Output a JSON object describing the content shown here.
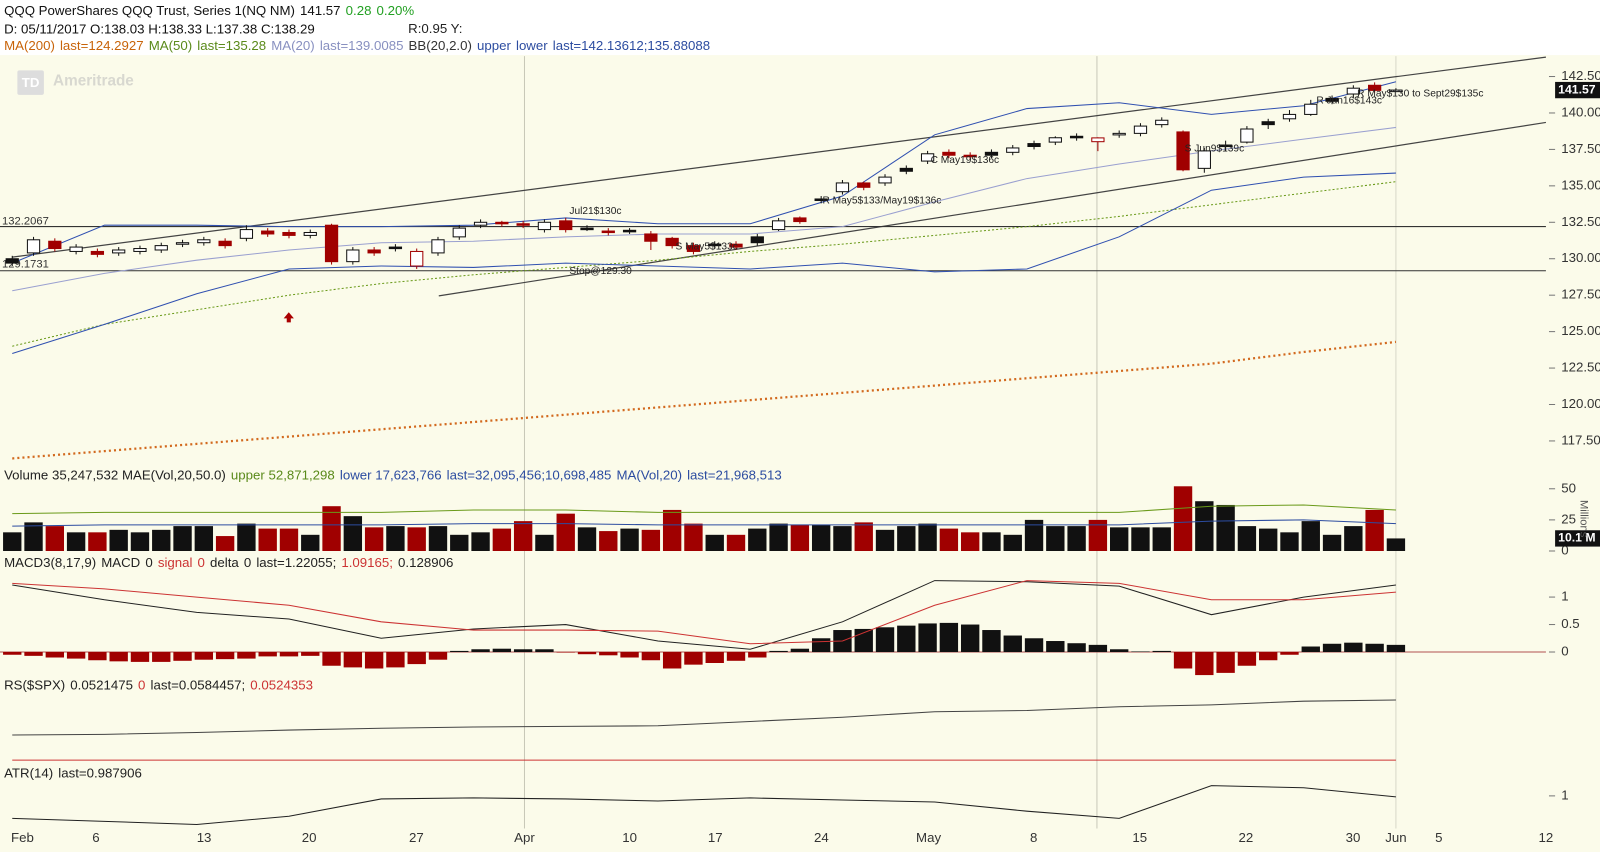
{
  "header": {
    "line1": [
      {
        "text": "QQQ PowerShares QQQ Trust, Series 1(NQ NM)",
        "color": "#111"
      },
      {
        "text": "141.57",
        "color": "#111"
      },
      {
        "text": "0.28",
        "color": "#22a022"
      },
      {
        "text": "0.20%",
        "color": "#22a022"
      }
    ],
    "line2": [
      {
        "text": "D: 05/11/2017 O:138.03 H:138.33 L:137.38 C:138.29",
        "color": "#111"
      },
      {
        "text": "R:0.95 Y:",
        "color": "#111"
      }
    ],
    "line3": [
      {
        "text": "MA(200)",
        "color": "#c8640a"
      },
      {
        "text": "last=124.2927",
        "color": "#c8640a"
      },
      {
        "text": "MA(50)",
        "color": "#5a8a1a"
      },
      {
        "text": "last=135.28",
        "color": "#5a8a1a"
      },
      {
        "text": "MA(20)",
        "color": "#8890c0"
      },
      {
        "text": "last=139.0085",
        "color": "#8890c0"
      },
      {
        "text": "BB(20,2.0)",
        "color": "#333"
      },
      {
        "text": "upper",
        "color": "#2c4ca0"
      },
      {
        "text": "lower",
        "color": "#2c4ca0"
      },
      {
        "text": "last=142.13612;135.88088",
        "color": "#2c4ca0"
      }
    ],
    "watermark_logo": "TD",
    "watermark": "Ameritrade"
  },
  "x_labels": [
    "Feb",
    "6",
    "13",
    "20",
    "27",
    "Apr",
    "10",
    "17",
    "24",
    "May",
    "8",
    "15",
    "22",
    "30",
    "Jun",
    "5",
    "12"
  ],
  "chart_data": [
    {
      "type": "candlestick",
      "up_color": "#111111",
      "down_color": "#a00000",
      "open": [
        130.0,
        130.4,
        131.2,
        130.5,
        130.5,
        130.4,
        130.5,
        130.6,
        131.0,
        131.1,
        131.2,
        131.4,
        131.9,
        131.8,
        131.6,
        132.3,
        129.8,
        130.6,
        130.8,
        129.5,
        130.4,
        131.5,
        132.3,
        132.5,
        132.4,
        132.0,
        132.6,
        132.1,
        131.9,
        131.95,
        131.7,
        131.4,
        130.9,
        131.0,
        131.0,
        131.5,
        132.0,
        132.8,
        134.1,
        134.6,
        135.2,
        135.2,
        136.2,
        136.7,
        137.3,
        137.1,
        137.3,
        137.3,
        137.9,
        138.0,
        138.4,
        138.03,
        138.5,
        138.6,
        139.2,
        138.7,
        136.2,
        137.8,
        138.0,
        139.4,
        139.6,
        139.9,
        141.0,
        141.3,
        141.9,
        141.5
      ],
      "high": [
        130.2,
        131.5,
        131.4,
        131.0,
        130.7,
        130.8,
        130.9,
        131.1,
        131.3,
        131.5,
        131.4,
        132.3,
        132.1,
        132.0,
        132.0,
        132.4,
        130.8,
        130.8,
        131.0,
        130.7,
        131.5,
        132.3,
        132.7,
        132.6,
        132.6,
        132.7,
        132.8,
        132.3,
        132.1,
        132.1,
        131.9,
        131.5,
        131.1,
        131.2,
        131.2,
        131.7,
        132.8,
        132.9,
        134.3,
        135.4,
        135.3,
        135.8,
        136.4,
        137.4,
        137.5,
        137.3,
        137.5,
        137.8,
        138.1,
        138.4,
        138.6,
        138.33,
        138.8,
        139.3,
        139.7,
        138.8,
        137.6,
        138.1,
        139.1,
        139.6,
        140.2,
        140.9,
        141.2,
        141.9,
        142.1,
        141.7
      ],
      "low": [
        129.5,
        130.2,
        130.5,
        130.3,
        130.1,
        130.2,
        130.3,
        130.4,
        130.8,
        130.9,
        130.7,
        131.2,
        131.5,
        131.4,
        131.4,
        129.6,
        129.6,
        130.2,
        130.5,
        129.3,
        130.2,
        131.3,
        132.1,
        132.2,
        132.1,
        131.8,
        131.8,
        131.9,
        131.6,
        131.7,
        130.6,
        130.7,
        130.3,
        130.7,
        130.6,
        130.9,
        131.9,
        132.4,
        133.8,
        134.4,
        134.7,
        135.0,
        135.8,
        136.5,
        136.9,
        136.8,
        136.9,
        137.1,
        137.5,
        137.8,
        138.1,
        137.38,
        138.3,
        138.4,
        139.0,
        136.0,
        135.9,
        137.4,
        137.9,
        138.9,
        139.4,
        139.8,
        140.6,
        141.0,
        141.4,
        141.45
      ],
      "close": [
        129.7,
        131.3,
        130.7,
        130.8,
        130.3,
        130.6,
        130.7,
        130.9,
        131.1,
        131.3,
        130.9,
        132.0,
        131.7,
        131.6,
        131.8,
        129.8,
        130.6,
        130.4,
        130.7,
        130.5,
        131.3,
        132.1,
        132.5,
        132.4,
        132.3,
        132.5,
        132.0,
        132.05,
        131.8,
        131.9,
        131.2,
        130.9,
        130.5,
        130.9,
        130.8,
        131.1,
        132.6,
        132.55,
        134.0,
        135.2,
        134.9,
        135.6,
        136.0,
        137.2,
        137.1,
        137.0,
        137.1,
        137.6,
        137.7,
        138.3,
        138.35,
        138.29,
        138.6,
        139.1,
        139.5,
        136.1,
        137.4,
        137.7,
        138.9,
        139.2,
        139.9,
        140.6,
        140.8,
        141.7,
        141.55,
        141.57
      ],
      "ylim": [
        115.9,
        143.9
      ],
      "yticks": [
        {
          "value": 142.5,
          "label": "142.50"
        },
        {
          "value": 140,
          "label": "140.00"
        },
        {
          "value": 137.5,
          "label": "137.50"
        },
        {
          "value": 135,
          "label": "135.00"
        },
        {
          "value": 132.5,
          "label": "132.50"
        },
        {
          "value": 130,
          "label": "130.00"
        },
        {
          "value": 127.5,
          "label": "127.50"
        },
        {
          "value": 125,
          "label": "125.00"
        },
        {
          "value": 122.5,
          "label": "122.50"
        },
        {
          "value": 120,
          "label": "120.00"
        },
        {
          "value": 117.5,
          "label": "117.50"
        }
      ],
      "reference_lines": [
        132.2067,
        129.1731
      ],
      "series": [
        {
          "color": "#d2691e",
          "dash": "2 3",
          "width": 2.2,
          "values": [
            116.3,
            116.8,
            117.3,
            117.8,
            118.3,
            118.8,
            119.3,
            119.8,
            120.3,
            120.8,
            121.3,
            121.8,
            122.3,
            122.8,
            123.6,
            124.29
          ]
        },
        {
          "color": "#6a9a1a",
          "dash": "2 2",
          "width": 1,
          "values": [
            124.0,
            125.5,
            126.5,
            127.5,
            128.3,
            128.9,
            129.4,
            129.9,
            130.5,
            131.0,
            131.6,
            132.2,
            132.9,
            133.7,
            134.5,
            135.28
          ]
        },
        {
          "color": "#9aa0d0",
          "dash": "",
          "width": 1,
          "values": [
            127.8,
            129.0,
            129.9,
            130.6,
            131.1,
            131.2,
            131.5,
            131.7,
            131.7,
            132.2,
            133.9,
            135.5,
            136.5,
            137.4,
            138.2,
            139.01
          ]
        },
        {
          "color": "#3050b0",
          "dash": "",
          "width": 1,
          "values": [
            129.7,
            132.3,
            132.3,
            132.2,
            132.2,
            132.3,
            132.8,
            132.4,
            132.4,
            134.3,
            138.5,
            140.3,
            140.7,
            139.9,
            140.5,
            142.14
          ]
        },
        {
          "color": "#3050b0",
          "dash": "",
          "width": 1,
          "values": [
            123.5,
            125.5,
            127.6,
            129.3,
            129.5,
            129.4,
            129.7,
            129.5,
            129.3,
            129.7,
            129.1,
            129.3,
            131.5,
            134.7,
            135.6,
            135.88
          ]
        }
      ],
      "annotations": [
        "Jul21$130c",
        "R May5$133/May19$136c",
        "S May5$133c",
        "C May19$136c",
        "Stop@129.30",
        "S Jun9$139c",
        "R Jun16$143c",
        "R May$130 to Sept29$135c"
      ]
    },
    {
      "type": "bar",
      "header": [
        {
          "text": "Volume 35,247,532 MAE(Vol,20,50.0)",
          "color": "#222"
        },
        {
          "text": "upper 52,871,298",
          "color": "#5a8a1a"
        },
        {
          "text": "lower 17,623,766",
          "color": "#2c4ca0"
        },
        {
          "text": "last=32,095,456;10,698,485",
          "color": "#2c4ca0"
        },
        {
          "text": "MA(Vol,20)",
          "color": "#2c4ca0"
        },
        {
          "text": "last=21,968,513",
          "color": "#2c4ca0"
        }
      ],
      "values": [
        15,
        23,
        20,
        15,
        15,
        17,
        15,
        17,
        20,
        20,
        12,
        22,
        18,
        18,
        13,
        36,
        28,
        19,
        20,
        19,
        20,
        13,
        15,
        18,
        24,
        13,
        30,
        19,
        16,
        18,
        17,
        33,
        22,
        13,
        13,
        18,
        22,
        21,
        21,
        20,
        23,
        17,
        20,
        22,
        18,
        15,
        15,
        13,
        25,
        20,
        20,
        25,
        19,
        19,
        19,
        52,
        40,
        37,
        20,
        18,
        15,
        24,
        13,
        20,
        33,
        10.1
      ],
      "last_label": "10.1 M",
      "axis_label": "Millions",
      "ylim": [
        0,
        53.3
      ],
      "yticks": [
        50,
        25,
        0
      ],
      "series": [
        {
          "color": "#6a9a1a",
          "values": [
            30,
            31,
            31,
            31,
            31,
            33,
            33,
            31,
            31,
            31,
            31,
            31,
            31,
            36,
            37,
            33
          ]
        },
        {
          "color": "#2c4ca0",
          "values": [
            20,
            21,
            21,
            21,
            21,
            22,
            22,
            21,
            21,
            21,
            21,
            21,
            21,
            24,
            25,
            22
          ]
        }
      ]
    },
    {
      "type": "bar",
      "header": [
        {
          "text": "MACD3(8,17,9)",
          "color": "#222"
        },
        {
          "text": "MACD",
          "color": "#222"
        },
        {
          "text": "0",
          "color": "#222"
        },
        {
          "text": "signal",
          "color": "#cc3333"
        },
        {
          "text": "0",
          "color": "#cc3333"
        },
        {
          "text": "delta",
          "color": "#222"
        },
        {
          "text": "0",
          "color": "#222"
        },
        {
          "text": "last=1.22055;",
          "color": "#222"
        },
        {
          "text": "1.09165;",
          "color": "#cc3333"
        },
        {
          "text": "0.128906",
          "color": "#222"
        }
      ],
      "values": [
        -0.05,
        -0.07,
        -0.1,
        -0.12,
        -0.15,
        -0.17,
        -0.18,
        -0.18,
        -0.16,
        -0.14,
        -0.13,
        -0.12,
        -0.08,
        -0.08,
        -0.07,
        -0.25,
        -0.28,
        -0.3,
        -0.28,
        -0.22,
        -0.14,
        0.02,
        0.05,
        0.06,
        0.05,
        0.05,
        -0.01,
        -0.04,
        -0.06,
        -0.1,
        -0.15,
        -0.3,
        -0.23,
        -0.2,
        -0.16,
        -0.1,
        0.02,
        0.06,
        0.25,
        0.4,
        0.42,
        0.45,
        0.48,
        0.52,
        0.53,
        0.5,
        0.4,
        0.3,
        0.25,
        0.2,
        0.16,
        0.13,
        0.05,
        0.01,
        0.02,
        -0.3,
        -0.42,
        -0.38,
        -0.25,
        -0.15,
        -0.05,
        0.1,
        0.15,
        0.17,
        0.15,
        0.13
      ],
      "positive_color": "#111111",
      "negative_color": "#a00000",
      "ylim": [
        -0.39,
        1.43
      ],
      "yticks": [
        1,
        0.5,
        0
      ],
      "series": [
        {
          "color": "#222",
          "values": [
            1.22,
            0.95,
            0.72,
            0.6,
            0.25,
            0.42,
            0.5,
            0.2,
            0.05,
            0.55,
            1.3,
            1.28,
            1.2,
            0.68,
            1.0,
            1.22
          ]
        },
        {
          "color": "#cc3333",
          "values": [
            1.25,
            1.15,
            1.0,
            0.85,
            0.55,
            0.4,
            0.4,
            0.38,
            0.15,
            0.2,
            0.85,
            1.3,
            1.25,
            0.95,
            0.95,
            1.09
          ]
        }
      ]
    },
    {
      "type": "line",
      "header": [
        {
          "text": "RS($SPX)",
          "color": "#222"
        },
        {
          "text": "0.0521475",
          "color": "#222"
        },
        {
          "text": "0",
          "color": "#cc3333"
        },
        {
          "text": "last=0.0584457;",
          "color": "#222"
        },
        {
          "text": "0.0524353",
          "color": "#cc3333"
        }
      ],
      "ylim": [
        0.0486,
        0.0594
      ],
      "series": [
        {
          "color": "#444",
          "values": [
            0.0527,
            0.0528,
            0.0531,
            0.0535,
            0.0538,
            0.054,
            0.0541,
            0.0542,
            0.0549,
            0.0556,
            0.0565,
            0.0567,
            0.0573,
            0.0576,
            0.0582,
            0.0584
          ]
        }
      ]
    },
    {
      "type": "line",
      "header": [
        {
          "text": "ATR(14)",
          "color": "#222"
        },
        {
          "text": "last=0.987906",
          "color": "#222"
        }
      ],
      "ylim": [
        0.68,
        1.1
      ],
      "yticks": [
        1
      ],
      "series": [
        {
          "color": "#222",
          "values": [
            0.78,
            0.75,
            0.72,
            0.8,
            0.97,
            0.98,
            0.97,
            0.95,
            0.98,
            0.96,
            0.94,
            0.85,
            0.78,
            1.1,
            1.08,
            0.99
          ]
        }
      ]
    }
  ]
}
